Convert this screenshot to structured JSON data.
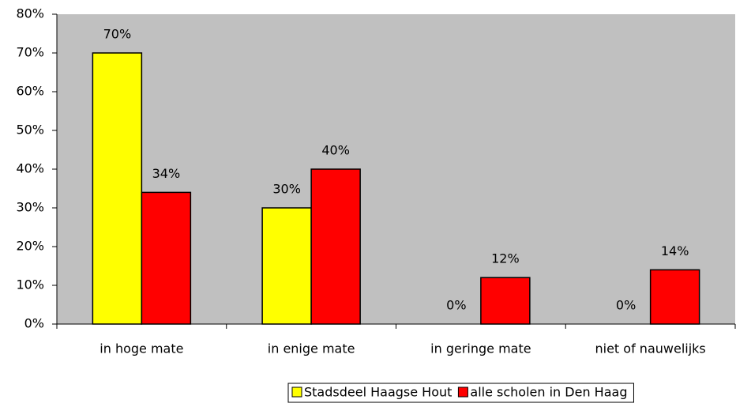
{
  "chart_data": {
    "type": "bar",
    "categories": [
      "in hoge mate",
      "in enige mate",
      "in geringe mate",
      "niet of nauwelijks"
    ],
    "series": [
      {
        "name": "Stadsdeel Haagse Hout",
        "color": "#ffff00",
        "values": [
          70,
          30,
          0,
          0
        ],
        "value_labels": [
          "70%",
          "30%",
          "0%",
          "0%"
        ]
      },
      {
        "name": "alle scholen in Den Haag",
        "color": "#ff0000",
        "values": [
          34,
          40,
          12,
          14
        ],
        "value_labels": [
          "34%",
          "40%",
          "12%",
          "14%"
        ]
      }
    ],
    "ylim": [
      0,
      80
    ],
    "yticks": [
      {
        "value": 0,
        "label": "0%"
      },
      {
        "value": 10,
        "label": "10%"
      },
      {
        "value": 20,
        "label": "20%"
      },
      {
        "value": 30,
        "label": "30%"
      },
      {
        "value": 40,
        "label": "40%"
      },
      {
        "value": 50,
        "label": "50%"
      },
      {
        "value": 60,
        "label": "60%"
      },
      {
        "value": 70,
        "label": "70%"
      },
      {
        "value": 80,
        "label": "80%"
      }
    ],
    "plot_background": "#c0c0c0",
    "legend": "bottom"
  }
}
